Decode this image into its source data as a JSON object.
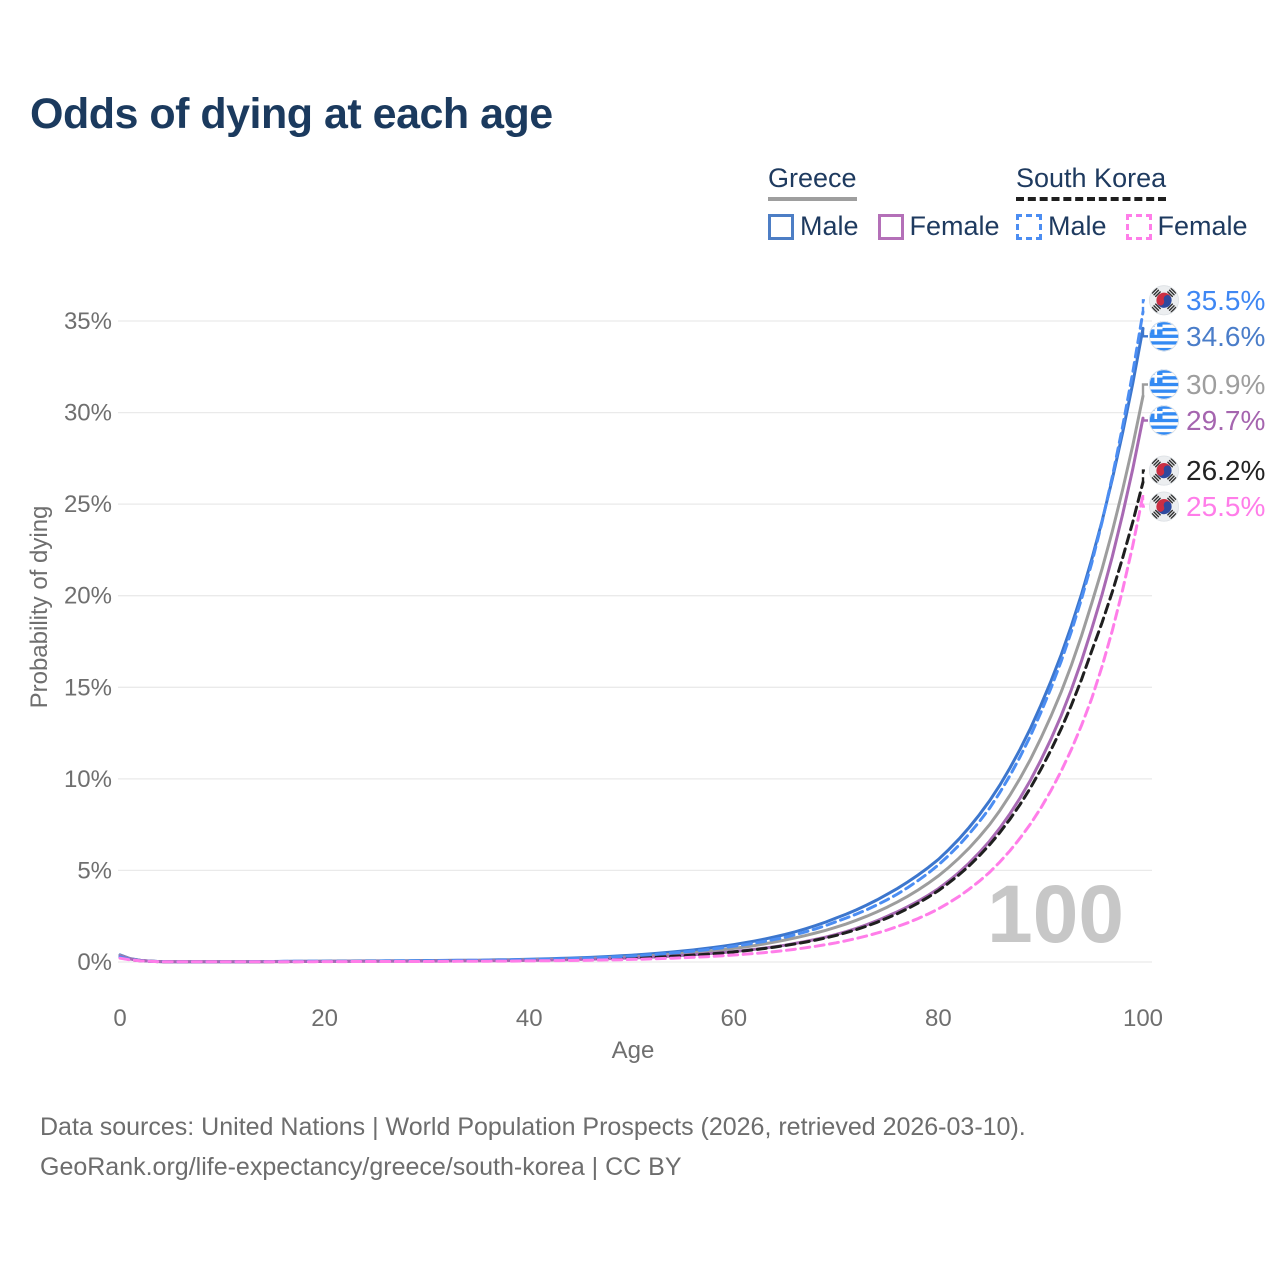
{
  "page": {
    "title": "Odds of dying at each age"
  },
  "legend": {
    "groups": [
      {
        "name": "Greece",
        "underline_style": "solid",
        "underline_color": "#9e9e9e",
        "items": [
          {
            "label": "Male",
            "color": "#4d7ec5",
            "dashed": false
          },
          {
            "label": "Female",
            "color": "#b470b8",
            "dashed": false
          }
        ]
      },
      {
        "name": "South Korea",
        "underline_style": "dashed",
        "underline_color": "#1f1f1f",
        "items": [
          {
            "label": "Male",
            "color": "#4b8df2",
            "dashed": true
          },
          {
            "label": "Female",
            "color": "#ff7de9",
            "dashed": true
          }
        ]
      }
    ]
  },
  "chart_data": {
    "type": "line",
    "title": "Odds of dying at each age",
    "xlabel": "Age",
    "ylabel": "Probability of dying",
    "xlim": [
      0,
      100
    ],
    "ylim": [
      0,
      36.5
    ],
    "x_ticks": [
      0,
      20,
      40,
      60,
      80,
      100
    ],
    "y_ticks": [
      0,
      5,
      10,
      15,
      20,
      25,
      30,
      35
    ],
    "y_tick_suffix": "%",
    "grid": true,
    "legend_position": "top-right",
    "watermark": "100",
    "x": [
      0,
      5,
      10,
      15,
      20,
      25,
      30,
      35,
      40,
      45,
      50,
      55,
      60,
      65,
      70,
      75,
      80,
      85,
      90,
      95,
      100
    ],
    "series": [
      {
        "name": "Greece male",
        "country": "Greece",
        "sex": "male",
        "flag": "greece",
        "color": "#3c76cd",
        "dashed": false,
        "end_label": "34.6%",
        "label_color": "#4a7dc9",
        "values": [
          0.39,
          0.01,
          0.01,
          0.03,
          0.05,
          0.06,
          0.08,
          0.1,
          0.15,
          0.23,
          0.37,
          0.6,
          0.95,
          1.5,
          2.4,
          3.7,
          5.6,
          8.8,
          14.0,
          22.0,
          34.6
        ]
      },
      {
        "name": "Greece both sexes",
        "country": "Greece",
        "sex": "all",
        "flag": "greece",
        "color": "#9d9d9d",
        "dashed": false,
        "end_label": "30.9%",
        "label_color": "#9e9e9e",
        "values": [
          0.36,
          0.01,
          0.01,
          0.02,
          0.04,
          0.05,
          0.06,
          0.08,
          0.12,
          0.18,
          0.29,
          0.47,
          0.74,
          1.2,
          1.9,
          3.0,
          4.7,
          7.5,
          12.2,
          19.6,
          30.9
        ]
      },
      {
        "name": "Greece female",
        "country": "Greece",
        "sex": "female",
        "flag": "greece",
        "color": "#a869b3",
        "dashed": false,
        "end_label": "29.7%",
        "label_color": "#a565af",
        "values": [
          0.33,
          0.01,
          0.01,
          0.02,
          0.03,
          0.04,
          0.05,
          0.06,
          0.09,
          0.14,
          0.22,
          0.36,
          0.57,
          0.92,
          1.5,
          2.5,
          4.0,
          6.6,
          11.0,
          18.2,
          29.7
        ]
      },
      {
        "name": "South Korea both sexes",
        "country": "South Korea",
        "sex": "all",
        "flag": "south-korea",
        "color": "#1f1f1f",
        "dashed": true,
        "end_label": "26.2%",
        "label_color": "#222222",
        "values": [
          0.24,
          0.01,
          0.01,
          0.02,
          0.03,
          0.04,
          0.05,
          0.06,
          0.09,
          0.13,
          0.21,
          0.34,
          0.55,
          0.9,
          1.45,
          2.4,
          3.9,
          6.4,
          10.5,
          17.0,
          26.2
        ]
      },
      {
        "name": "South Korea male",
        "country": "South Korea",
        "sex": "male",
        "flag": "south-korea",
        "color": "#4b8df2",
        "dashed": true,
        "end_label": "35.5%",
        "label_color": "#3f87f3",
        "values": [
          0.28,
          0.01,
          0.01,
          0.03,
          0.04,
          0.05,
          0.07,
          0.09,
          0.13,
          0.2,
          0.33,
          0.54,
          0.86,
          1.35,
          2.2,
          3.4,
          5.3,
          8.4,
          13.6,
          21.8,
          35.5
        ]
      },
      {
        "name": "South Korea female",
        "country": "South Korea",
        "sex": "female",
        "flag": "south-korea",
        "color": "#ff7de9",
        "dashed": true,
        "end_label": "25.5%",
        "label_color": "#ff7de9",
        "values": [
          0.21,
          0.01,
          0.01,
          0.01,
          0.02,
          0.03,
          0.03,
          0.04,
          0.06,
          0.09,
          0.14,
          0.23,
          0.38,
          0.63,
          1.05,
          1.75,
          2.9,
          4.9,
          8.4,
          14.4,
          25.5
        ]
      }
    ]
  },
  "footer": {
    "line1": "Data sources: United Nations | World Population Prospects (2026, retrieved 2026-03-10).",
    "line2": "GeoRank.org/life-expectancy/greece/south-korea | CC BY"
  }
}
